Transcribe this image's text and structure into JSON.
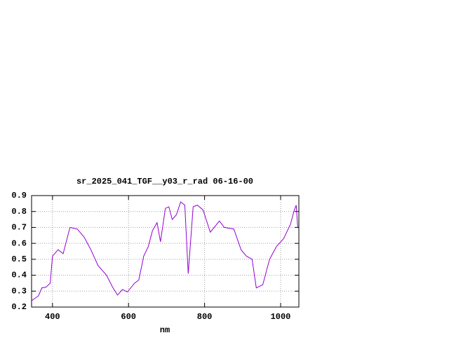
{
  "chart_data": {
    "type": "line",
    "title": "sr_2025_041_TGF__y03_r_rad 06-16-00",
    "x_label": "nm",
    "x": [
      345,
      363,
      372,
      383,
      394,
      400,
      415,
      428,
      446,
      465,
      483,
      501,
      520,
      542,
      557,
      571,
      584,
      597,
      616,
      627,
      640,
      652,
      663,
      675,
      684,
      697,
      706,
      715,
      726,
      737,
      748,
      757,
      770,
      781,
      796,
      815,
      839,
      852,
      877,
      896,
      910,
      925,
      936,
      953,
      971,
      989,
      1008,
      1026,
      1036,
      1041,
      1045
    ],
    "series": [
      {
        "name": "sr_2025_041_TGF__y03_r_rad",
        "color": "#9400d3",
        "values": [
          0.24,
          0.27,
          0.32,
          0.325,
          0.35,
          0.52,
          0.56,
          0.535,
          0.7,
          0.69,
          0.64,
          0.56,
          0.46,
          0.4,
          0.33,
          0.275,
          0.31,
          0.295,
          0.35,
          0.37,
          0.52,
          0.58,
          0.68,
          0.73,
          0.61,
          0.82,
          0.83,
          0.75,
          0.78,
          0.86,
          0.84,
          0.41,
          0.83,
          0.84,
          0.81,
          0.67,
          0.74,
          0.7,
          0.69,
          0.56,
          0.52,
          0.5,
          0.32,
          0.34,
          0.5,
          0.58,
          0.63,
          0.72,
          0.81,
          0.84,
          0.7
        ]
      }
    ],
    "xlim": [
      345,
      1048
    ],
    "xticks": [
      400,
      600,
      800,
      1000
    ],
    "ylim": [
      0.2,
      0.9
    ],
    "yticks": [
      0.2,
      0.3,
      0.4,
      0.5,
      0.6,
      0.7,
      0.8,
      0.9
    ],
    "grid": true
  }
}
